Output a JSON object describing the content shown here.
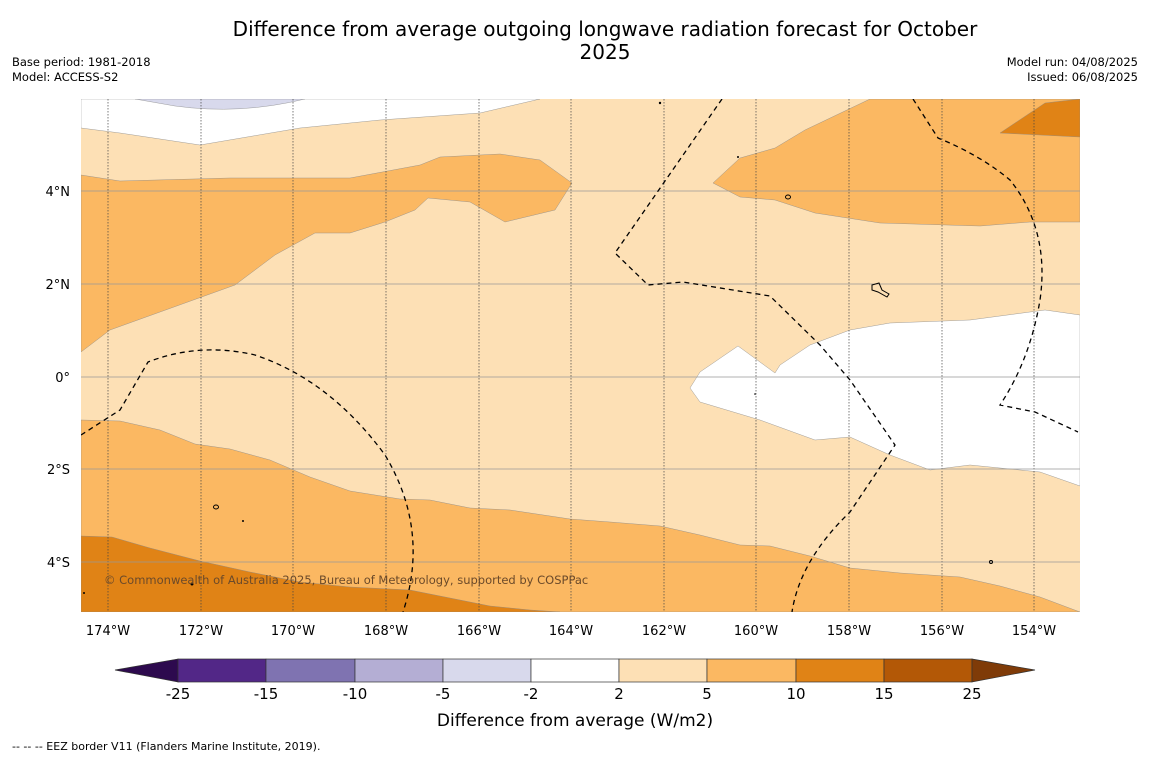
{
  "title": "Difference from average outgoing longwave radiation forecast for October 2025",
  "meta_left": {
    "base_period": "Base period: 1981-2018",
    "model": "Model: ACCESS-S2"
  },
  "meta_right": {
    "model_run": "Model run: 04/08/2025",
    "issued": "Issued: 06/08/2025"
  },
  "axes": {
    "x_ticks": [
      "174°W",
      "172°W",
      "170°W",
      "168°W",
      "166°W",
      "164°W",
      "162°W",
      "160°W",
      "158°W",
      "156°W",
      "154°W"
    ],
    "y_ticks": [
      "4°N",
      "2°N",
      "0°",
      "2°S",
      "4°S"
    ]
  },
  "copyright": "© Commonwealth of Australia 2025, Bureau of Meteorology, supported by COSPPac",
  "colorbar": {
    "label": "Difference from average (W/m2)",
    "ticks": [
      "-25",
      "-15",
      "-10",
      "-5",
      "-2",
      "2",
      "5",
      "10",
      "15",
      "25"
    ],
    "colors": {
      "extend_low": "#2d0a4e",
      "c1": "#522787",
      "c2": "#7f73b1",
      "c3": "#b4aed4",
      "c4": "#d8d9ec",
      "c5": "#ffffff",
      "c6": "#fde0b5",
      "c7": "#fbb862",
      "c8": "#e08316",
      "c9": "#b35806",
      "extend_high": "#7f3b08"
    }
  },
  "footnote": "--  --  -- EEZ border V11 (Flanders Marine Institute, 2019)."
}
